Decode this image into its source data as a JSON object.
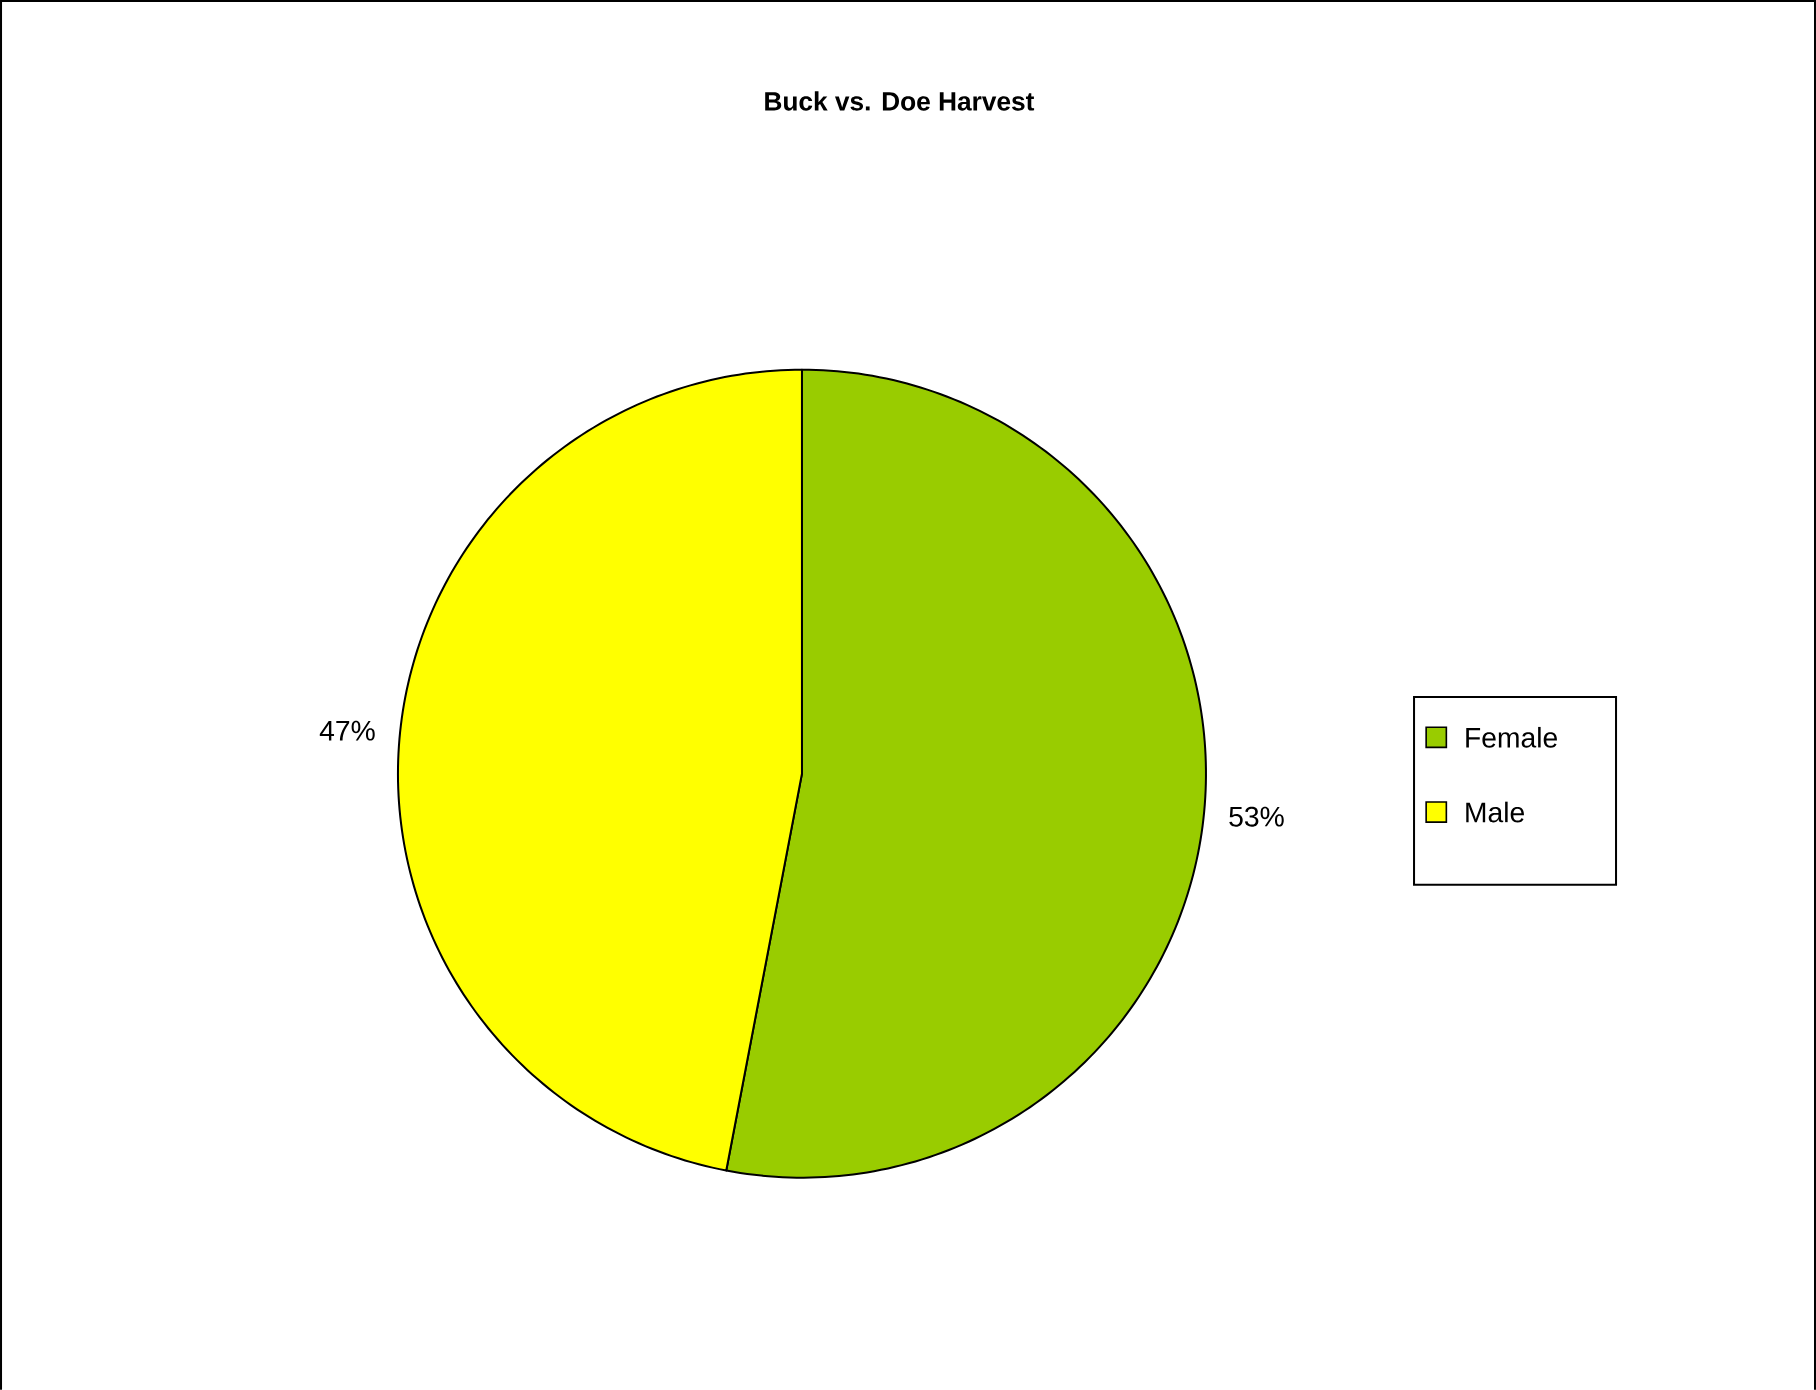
{
  "chart_data": {
    "type": "pie",
    "title": "Buck vs. Doe Harvest",
    "categories": [
      "Female",
      "Male"
    ],
    "values": [
      53,
      47
    ],
    "colors": [
      "#99cc00",
      "#ffff00"
    ],
    "value_labels": [
      "53%",
      "47%"
    ],
    "legend": "right"
  }
}
